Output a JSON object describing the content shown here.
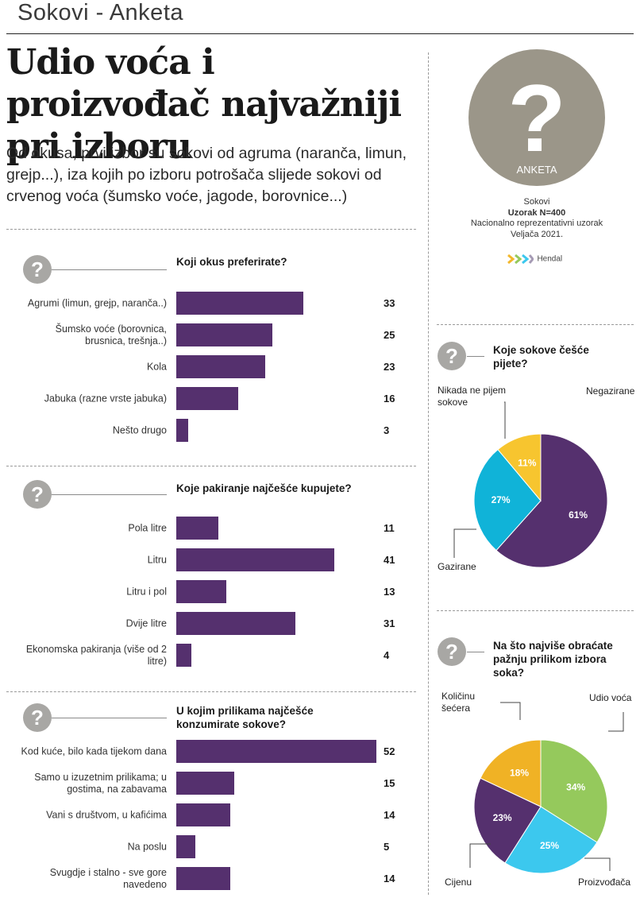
{
  "header": {
    "title": "Sokovi - Anketa"
  },
  "headline": "Udio voća i proizvođač najvažniji pri izboru",
  "lead": "Od okusa, prvi izbor su sokovi od agruma (naranča, limun, grejp...), iza kojih po izboru potrošača slijede sokovi od crvenog voća (šumsko voće, jagode, borovnice...)",
  "badge": {
    "symbol": "?",
    "label": "ANKETA"
  },
  "meta": {
    "topic": "Sokovi",
    "sample": "Uzorak N=400",
    "method": "Nacionalno reprezentativni uzorak",
    "date": "Veljača 2021.",
    "brand": "Hendal"
  },
  "icon": "question-mark-icon",
  "colors": {
    "bar": "#55306e",
    "badge": "#9b9689",
    "icon": "#a8a7a4"
  },
  "chart_data": [
    {
      "type": "bar",
      "question": "Koji okus preferirate?",
      "categories": [
        "Agrumi (limun, grejp, naranča..)",
        "Šumsko voće (borovnica, brusnica, trešnja..)",
        "Kola",
        "Jabuka (razne vrste jabuka)",
        "Nešto drugo"
      ],
      "values": [
        33,
        25,
        23,
        16,
        3
      ]
    },
    {
      "type": "bar",
      "question": "Koje pakiranje najčešće kupujete?",
      "categories": [
        "Pola litre",
        "Litru",
        "Litru i pol",
        "Dvije litre",
        "Ekonomska pakiranja (više od 2 litre)"
      ],
      "values": [
        11,
        41,
        13,
        31,
        4
      ]
    },
    {
      "type": "bar",
      "question": "U kojim prilikama najčešće konzumirate sokove?",
      "categories": [
        "Kod kuće, bilo kada tijekom dana",
        "Samo u izuzetnim prilikama; u gostima, na zabavama",
        "Vani s društvom, u kafićima",
        "Na poslu",
        "Svugdje i stalno - sve gore navedeno"
      ],
      "values": [
        52,
        15,
        14,
        5,
        14
      ]
    },
    {
      "type": "pie",
      "question": "Koje sokove češće pijete?",
      "slices": [
        {
          "label": "Negazirane",
          "value": 61,
          "color": "#55306e",
          "text": "61%"
        },
        {
          "label": "Gazirane",
          "value": 27,
          "color": "#10b3d8",
          "text": "27%"
        },
        {
          "label": "Nikada ne pijem sokove",
          "value": 11,
          "color": "#f7c52f",
          "text": "11%"
        }
      ]
    },
    {
      "type": "pie",
      "question": "Na što najviše obraćate pažnju prilikom izbora soka?",
      "slices": [
        {
          "label": "Udio voća",
          "value": 34,
          "color": "#95c95c",
          "text": "34%"
        },
        {
          "label": "Proizvođača",
          "value": 25,
          "color": "#3cc8ee",
          "text": "25%"
        },
        {
          "label": "Cijenu",
          "value": 23,
          "color": "#55306e",
          "text": "23%"
        },
        {
          "label": "Količinu šećera",
          "value": 18,
          "color": "#f0b225",
          "text": "18%"
        }
      ]
    }
  ]
}
